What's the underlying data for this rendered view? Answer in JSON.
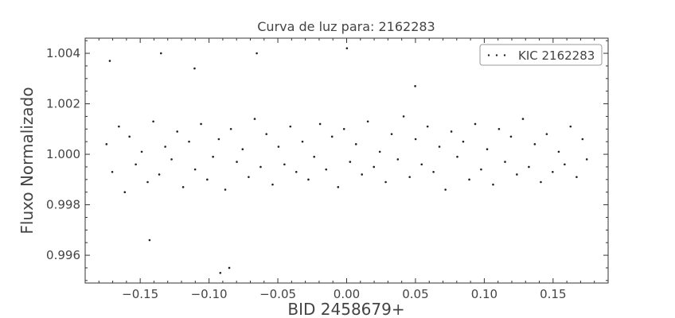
{
  "chart_data": {
    "type": "scatter",
    "title": "Curva de luz para: 2162283",
    "xlabel": "BID 2458679+",
    "ylabel": "Fluxo Normalizado",
    "xlim": [
      -0.19,
      0.19
    ],
    "ylim": [
      0.9949,
      1.0046
    ],
    "x_ticks": [
      -0.15,
      -0.1,
      -0.05,
      0.0,
      0.05,
      0.1,
      0.15
    ],
    "x_tick_labels": [
      "−0.15",
      "−0.10",
      "−0.05",
      "0.00",
      "0.05",
      "0.10",
      "0.15"
    ],
    "y_ticks": [
      0.996,
      0.998,
      1.0,
      1.002,
      1.004
    ],
    "y_tick_labels": [
      "0.996",
      "0.998",
      "1.000",
      "1.002",
      "1.004"
    ],
    "legend": {
      "position": "top-right",
      "entries": [
        "KIC 2162283"
      ]
    },
    "grid": false,
    "marker_color": "#222222",
    "series": [
      {
        "name": "KIC 2162283",
        "x": [
          -0.1745,
          -0.1703,
          -0.1655,
          -0.1612,
          -0.1578,
          -0.1532,
          -0.1489,
          -0.1446,
          -0.1405,
          -0.1362,
          -0.1318,
          -0.1272,
          -0.1231,
          -0.1188,
          -0.1145,
          -0.1101,
          -0.1058,
          -0.1013,
          -0.0971,
          -0.0929,
          -0.0882,
          -0.0841,
          -0.0798,
          -0.0756,
          -0.0712,
          -0.0668,
          -0.0625,
          -0.0583,
          -0.0538,
          -0.0495,
          -0.0452,
          -0.0409,
          -0.0366,
          -0.0321,
          -0.0278,
          -0.0236,
          -0.0193,
          -0.0149,
          -0.0106,
          -0.0062,
          -0.0019,
          0.0025,
          0.0068,
          0.0111,
          0.0154,
          0.0198,
          0.0241,
          0.0284,
          0.0327,
          0.0372,
          0.0414,
          0.0458,
          0.0501,
          0.0545,
          0.0588,
          0.0631,
          0.0674,
          0.0718,
          0.0761,
          0.0804,
          0.0847,
          0.0891,
          0.0934,
          0.0977,
          0.1021,
          0.1064,
          0.1107,
          0.1151,
          0.1194,
          0.1237,
          0.1281,
          0.1324,
          0.1367,
          0.1411,
          0.1454,
          0.1497,
          0.1541,
          0.1584,
          0.1627,
          0.1671,
          0.1714,
          0.1745,
          -0.1721,
          -0.1349,
          -0.1105,
          -0.0653,
          0.0002,
          0.0498,
          -0.1432,
          -0.0918,
          -0.0853
        ],
        "y": [
          1.0004,
          0.9993,
          1.0011,
          0.9985,
          1.0007,
          0.9996,
          1.0001,
          0.9989,
          1.0013,
          0.9992,
          1.0003,
          0.9998,
          1.0009,
          0.9987,
          1.0005,
          0.9994,
          1.0012,
          0.999,
          0.9999,
          1.0006,
          0.9986,
          1.001,
          0.9997,
          1.0002,
          0.9991,
          1.0014,
          0.9995,
          1.0008,
          0.9988,
          1.0003,
          0.9996,
          1.0011,
          0.9993,
          1.0005,
          0.999,
          0.9999,
          1.0012,
          0.9994,
          1.0007,
          0.9987,
          1.001,
          0.9997,
          1.0004,
          0.9992,
          1.0013,
          0.9995,
          1.0001,
          0.9989,
          1.0008,
          0.9998,
          1.0015,
          0.9991,
          1.0006,
          0.9996,
          1.0011,
          0.9993,
          1.0003,
          0.9986,
          1.0009,
          0.9999,
          1.0005,
          0.999,
          1.0012,
          0.9994,
          1.0002,
          0.9988,
          1.001,
          0.9997,
          1.0007,
          0.9992,
          1.0014,
          0.9995,
          1.0004,
          0.9989,
          1.0008,
          0.9993,
          1.0001,
          0.9996,
          1.0011,
          0.9991,
          1.0006,
          0.9998,
          1.0037,
          1.004,
          1.0034,
          1.004,
          1.0042,
          1.0027,
          0.9966,
          0.9953,
          0.9955
        ]
      }
    ]
  }
}
